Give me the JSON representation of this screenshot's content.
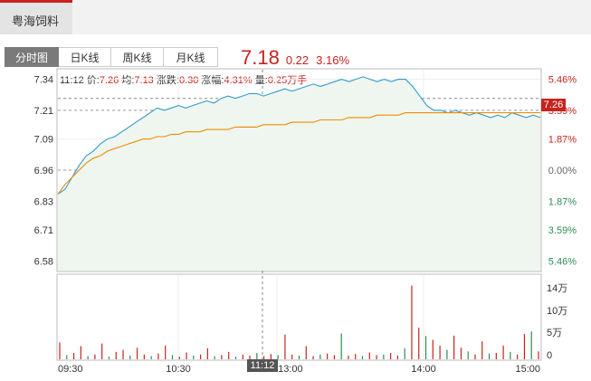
{
  "stock": {
    "name": "粤海饲料"
  },
  "period_tabs": [
    {
      "label": "分时图",
      "active": true
    },
    {
      "label": "日K线",
      "active": false
    },
    {
      "label": "周K线",
      "active": false
    },
    {
      "label": "月K线",
      "active": false
    }
  ],
  "quote": {
    "price": "7.18",
    "change": "0.22",
    "change_pct": "3.16%"
  },
  "info_bar": {
    "time": "11:12",
    "price_label": "价:",
    "price": "7.26",
    "avg_label": "均:",
    "avg": "7.13",
    "chg_label": "涨跌:",
    "chg": "0.30",
    "pct_label": "涨幅:",
    "pct": "4.31%",
    "vol_label": "量:",
    "vol": "0.25万手"
  },
  "cursor": {
    "time": "11:12",
    "price": "7.26"
  },
  "colors": {
    "up": "#c8231d",
    "down": "#2e8b57",
    "price_line": "#3399cc",
    "avg_line": "#f08c00",
    "area": "#eef6ef"
  },
  "chart_data": {
    "type": "line",
    "prev_close": 6.96,
    "price_ticks": [
      "7.34",
      "7.21",
      "7.09",
      "6.96",
      "6.83",
      "6.71",
      "6.58"
    ],
    "pct_ticks": [
      "5.46%",
      "3.59%",
      "1.87%",
      "0.00%",
      "1.87%",
      "3.59%",
      "5.46%"
    ],
    "ylim": [
      6.54,
      7.38
    ],
    "time_labels": [
      "09:30",
      "10:30",
      "11:30/13:00",
      "14:00",
      "15:00"
    ],
    "vol_ticks": [
      "14万",
      "10万",
      "5万",
      "0"
    ],
    "vol_max": 160000,
    "price_series": [
      6.86,
      6.88,
      6.93,
      6.98,
      7.02,
      7.04,
      7.07,
      7.09,
      7.1,
      7.12,
      7.14,
      7.16,
      7.18,
      7.2,
      7.22,
      7.21,
      7.22,
      7.23,
      7.22,
      7.23,
      7.24,
      7.25,
      7.24,
      7.26,
      7.27,
      7.26,
      7.27,
      7.28,
      7.28,
      7.27,
      7.28,
      7.29,
      7.3,
      7.29,
      7.3,
      7.31,
      7.32,
      7.31,
      7.32,
      7.33,
      7.34,
      7.33,
      7.34,
      7.35,
      7.34,
      7.33,
      7.34,
      7.33,
      7.34,
      7.34,
      7.31,
      7.27,
      7.23,
      7.21,
      7.21,
      7.2,
      7.21,
      7.2,
      7.19,
      7.2,
      7.19,
      7.18,
      7.19,
      7.18,
      7.2,
      7.19,
      7.18,
      7.19,
      7.18
    ],
    "avg_series": [
      6.86,
      6.9,
      6.93,
      6.96,
      6.99,
      7.01,
      7.02,
      7.04,
      7.05,
      7.06,
      7.07,
      7.08,
      7.09,
      7.09,
      7.1,
      7.1,
      7.11,
      7.11,
      7.12,
      7.12,
      7.12,
      7.13,
      7.13,
      7.13,
      7.13,
      7.14,
      7.14,
      7.14,
      7.14,
      7.15,
      7.15,
      7.15,
      7.15,
      7.16,
      7.16,
      7.16,
      7.16,
      7.17,
      7.17,
      7.17,
      7.17,
      7.18,
      7.18,
      7.18,
      7.18,
      7.19,
      7.19,
      7.19,
      7.19,
      7.2,
      7.2,
      7.2,
      7.2,
      7.2,
      7.2,
      7.2,
      7.2,
      7.2,
      7.2,
      7.2,
      7.2,
      7.2,
      7.2,
      7.2,
      7.2,
      7.2,
      7.2,
      7.2,
      7.2
    ],
    "volume_series": [
      32000,
      8000,
      12000,
      25000,
      6000,
      9000,
      30000,
      5000,
      14000,
      18000,
      7000,
      22000,
      9000,
      6000,
      11000,
      26000,
      8000,
      5000,
      13000,
      7000,
      9000,
      21000,
      6000,
      8000,
      14000,
      5000,
      9000,
      7000,
      12000,
      6000,
      10000,
      8000,
      47000,
      9000,
      7000,
      25000,
      6000,
      9000,
      11000,
      8000,
      49000,
      7000,
      10000,
      6000,
      13000,
      8000,
      9000,
      12000,
      7000,
      21000,
      140000,
      60000,
      44000,
      37000,
      26000,
      18000,
      45000,
      22000,
      15000,
      9000,
      34000,
      11000,
      12000,
      26000,
      14000,
      9000,
      48000,
      53000,
      15000
    ]
  }
}
